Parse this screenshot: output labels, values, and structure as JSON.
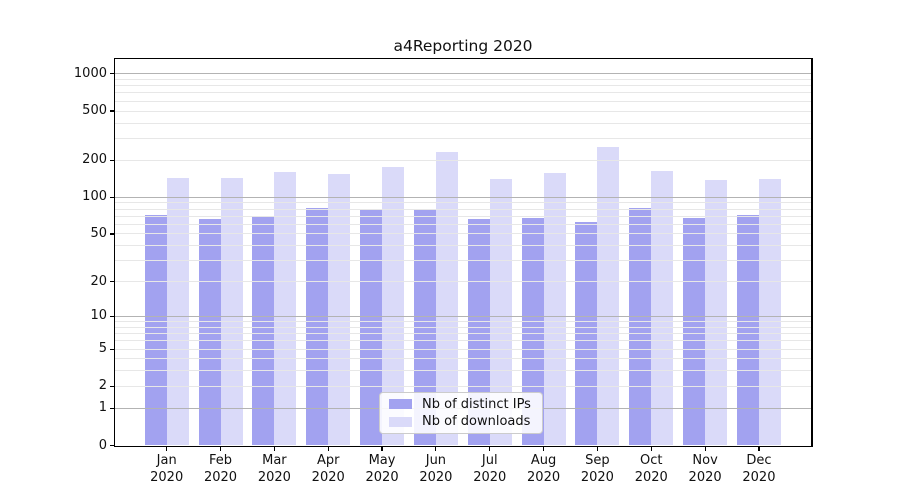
{
  "chart_data": {
    "type": "bar",
    "title": "a4Reporting 2020",
    "categories": [
      "Jan 2020",
      "Feb 2020",
      "Mar 2020",
      "Apr 2020",
      "May 2020",
      "Jun 2020",
      "Jul 2020",
      "Aug 2020",
      "Sep 2020",
      "Oct 2020",
      "Nov 2020",
      "Dec 2020"
    ],
    "series": [
      {
        "name": "Nb of distinct IPs",
        "color": "#a2a2f0",
        "values": [
          71,
          66,
          70,
          81,
          78,
          79,
          66,
          68,
          63,
          81,
          68,
          71
        ]
      },
      {
        "name": "Nb of downloads",
        "color": "#dadaf9",
        "values": [
          143,
          143,
          159,
          154,
          175,
          232,
          140,
          156,
          257,
          163,
          137,
          140
        ]
      }
    ],
    "xlabel": "",
    "ylabel": "",
    "y_scale": "symlog",
    "y_ticks": [
      0,
      1,
      2,
      5,
      10,
      20,
      50,
      100,
      200,
      500,
      1000
    ],
    "y_major_gridlines": [
      1,
      10,
      100,
      1000
    ],
    "ylim": [
      0,
      1316
    ],
    "grid": "on (log minors + darker majors), drawn over bars",
    "legend_position": "lower center, inside plot"
  },
  "colors": {
    "bar_distinct_ips": "#a2a2f0",
    "bar_downloads": "#dadaf9",
    "grid_major": "#b3b3b3",
    "grid_minor": "#e7e7e7",
    "spine": "#000000",
    "text": "#111111",
    "legend_border": "#cccccc",
    "legend_background": "rgba(255,255,255,0.88)",
    "background": "#ffffff"
  }
}
